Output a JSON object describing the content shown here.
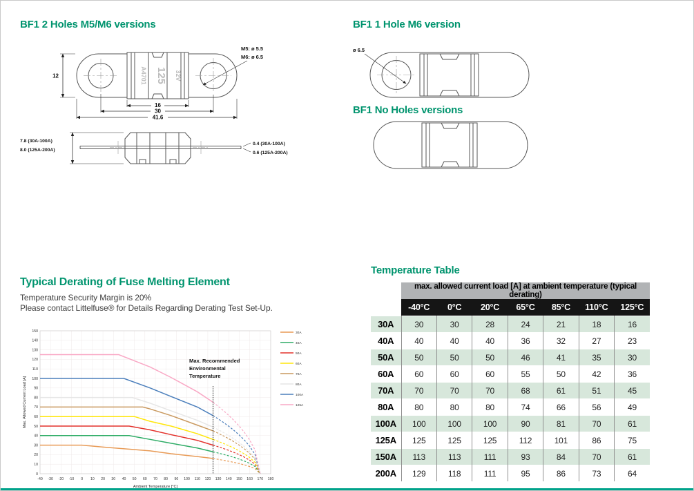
{
  "page": {
    "accent_green": "#00946e",
    "bottom_bar_color": "#00a38b"
  },
  "sections": {
    "two_holes": {
      "title": "BF1 2 Holes M5/M6 versions",
      "dims": {
        "height": "12",
        "block_width": "16",
        "hole_spacing": "30",
        "overall_width": "41.6",
        "m5": "M5: ø 5.5",
        "m6": "M6: ø 6.5",
        "side_height_1": "7.8 (30A-100A)",
        "side_height_2": "8.0 (125A-200A)",
        "blade_1": "0.4 (30A-100A)",
        "blade_2": "0.6 (125A-200A)"
      },
      "markings": [
        "A4701",
        "125",
        "32V"
      ]
    },
    "one_hole": {
      "title": "BF1 1 Hole M6 version",
      "dim_hole": "ø 6.5"
    },
    "no_holes": {
      "title": "BF1 No Holes versions"
    },
    "derating": {
      "title": "Typical Derating of Fuse Melting Element",
      "line1": "Temperature Security Margin is 20%",
      "line2": "Please contact Littelfuse® for Details Regarding Derating Test Set-Up."
    },
    "temperature_table": {
      "title": "Temperature Table",
      "header": "max. allowed current load [A] at ambient temperature (typical derating)",
      "columns": [
        "-40°C",
        "0°C",
        "20°C",
        "65°C",
        "85°C",
        "110°C",
        "125°C"
      ],
      "rows": [
        {
          "label": "30A",
          "values": [
            30,
            30,
            28,
            24,
            21,
            18,
            16
          ]
        },
        {
          "label": "40A",
          "values": [
            40,
            40,
            40,
            36,
            32,
            27,
            23
          ]
        },
        {
          "label": "50A",
          "values": [
            50,
            50,
            50,
            46,
            41,
            35,
            30
          ]
        },
        {
          "label": "60A",
          "values": [
            60,
            60,
            60,
            55,
            50,
            42,
            36
          ]
        },
        {
          "label": "70A",
          "values": [
            70,
            70,
            70,
            68,
            61,
            51,
            45
          ]
        },
        {
          "label": "80A",
          "values": [
            80,
            80,
            80,
            74,
            66,
            56,
            49
          ]
        },
        {
          "label": "100A",
          "values": [
            100,
            100,
            100,
            90,
            81,
            70,
            61
          ]
        },
        {
          "label": "125A",
          "values": [
            125,
            125,
            125,
            112,
            101,
            86,
            75
          ]
        },
        {
          "label": "150A",
          "values": [
            113,
            113,
            111,
            93,
            84,
            70,
            61
          ]
        },
        {
          "label": "200A",
          "values": [
            129,
            118,
            111,
            95,
            86,
            73,
            64
          ]
        }
      ]
    }
  },
  "chart_data": {
    "type": "line",
    "title": "",
    "xlabel": "Ambient Temperature [°C]",
    "ylabel": "Max. Allowed Current Load [A]",
    "xlim": [
      -40,
      180
    ],
    "ylim": [
      0,
      150
    ],
    "xtick_step": 10,
    "ytick_step": 10,
    "grid": true,
    "legend_position": "right",
    "annotation": "Max. Recommended Environmental Temperature",
    "annotation_lines": [
      "Max. Recommended",
      "Environmental",
      "Temperature"
    ],
    "annotation_line_x": 125,
    "dashed_converge_x": 170,
    "series": [
      {
        "name": "30A",
        "color": "#e89a55",
        "solid": [
          [
            -40,
            30
          ],
          [
            0,
            30
          ],
          [
            20,
            28
          ],
          [
            65,
            24
          ],
          [
            85,
            21
          ],
          [
            110,
            18
          ],
          [
            125,
            16
          ]
        ]
      },
      {
        "name": "40A",
        "color": "#2eac66",
        "solid": [
          [
            -40,
            40
          ],
          [
            20,
            40
          ],
          [
            45,
            40
          ],
          [
            65,
            36
          ],
          [
            85,
            32
          ],
          [
            110,
            27
          ],
          [
            125,
            23
          ]
        ]
      },
      {
        "name": "50A",
        "color": "#e3302a",
        "solid": [
          [
            -40,
            50
          ],
          [
            20,
            50
          ],
          [
            45,
            50
          ],
          [
            65,
            46
          ],
          [
            85,
            41
          ],
          [
            110,
            35
          ],
          [
            125,
            30
          ]
        ]
      },
      {
        "name": "60A",
        "color": "#ffe60a",
        "solid": [
          [
            -40,
            60
          ],
          [
            20,
            60
          ],
          [
            50,
            60
          ],
          [
            65,
            55
          ],
          [
            85,
            50
          ],
          [
            110,
            42
          ],
          [
            125,
            36
          ]
        ]
      },
      {
        "name": "70A",
        "color": "#c9995f",
        "solid": [
          [
            -40,
            70
          ],
          [
            20,
            70
          ],
          [
            58,
            70
          ],
          [
            65,
            68
          ],
          [
            85,
            61
          ],
          [
            110,
            51
          ],
          [
            125,
            45
          ]
        ]
      },
      {
        "name": "80A",
        "color": "#e6e6e6",
        "solid": [
          [
            -40,
            80
          ],
          [
            20,
            80
          ],
          [
            48,
            80
          ],
          [
            65,
            74
          ],
          [
            85,
            66
          ],
          [
            110,
            56
          ],
          [
            125,
            49
          ]
        ]
      },
      {
        "name": "100A",
        "color": "#4a7ebb",
        "solid": [
          [
            -40,
            100
          ],
          [
            40,
            100
          ],
          [
            65,
            90
          ],
          [
            85,
            81
          ],
          [
            110,
            70
          ],
          [
            125,
            61
          ]
        ]
      },
      {
        "name": "125A",
        "color": "#f9a8c5",
        "solid": [
          [
            -40,
            125
          ],
          [
            35,
            125
          ],
          [
            65,
            112
          ],
          [
            85,
            101
          ],
          [
            110,
            86
          ],
          [
            125,
            75
          ]
        ]
      }
    ]
  }
}
